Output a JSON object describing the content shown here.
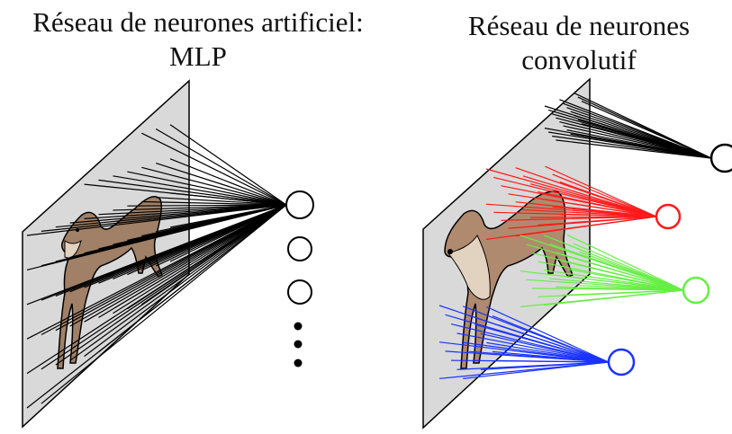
{
  "left_panel": {
    "title_line1": "Réseau de neurones artificiel:",
    "title_line2": "MLP"
  },
  "right_panel": {
    "title_line1": "Réseau de neurones",
    "title_line2": "convolutif",
    "filters": [
      {
        "name": "black",
        "color": "#000000"
      },
      {
        "name": "red",
        "color": "#ff1a1a"
      },
      {
        "name": "green",
        "color": "#66ee44"
      },
      {
        "name": "blue",
        "color": "#1a33ff"
      }
    ]
  },
  "colors": {
    "panel_fill": "#d9d9d9",
    "outline": "#000000",
    "animal_fur": "#a08066",
    "animal_light": "#e2d2c0"
  }
}
